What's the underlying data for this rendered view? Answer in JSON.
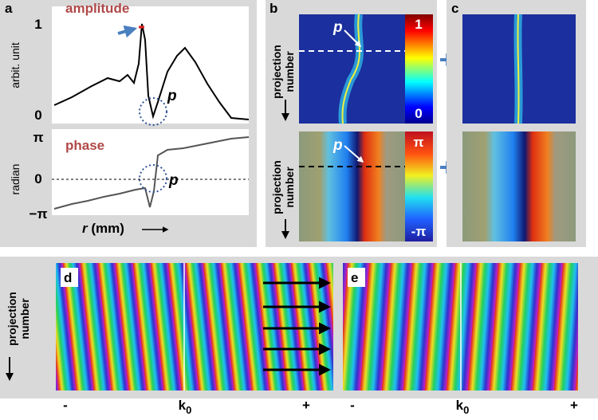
{
  "panel_a": {
    "label": "a",
    "amplitude": {
      "title": "amplitude",
      "y_label": "arbit. unit",
      "tick_top": "1",
      "tick_bottom": "0",
      "marker": "p"
    },
    "phase": {
      "title": "phase",
      "y_label": "radian",
      "tick_top": "π",
      "tick_middle": "0",
      "tick_bottom": "−π",
      "marker": "p"
    },
    "x_label_symbol": "r",
    "x_label_unit": "(mm)"
  },
  "panel_b": {
    "label": "b",
    "y_label": [
      "projection",
      "number"
    ],
    "top_marker": "p",
    "bottom_marker": "p",
    "top_colorbar": {
      "max": "1",
      "min": "0"
    },
    "bottom_colorbar": {
      "max": "π",
      "min": "-π"
    }
  },
  "panel_c": {
    "label": "c"
  },
  "panel_d": {
    "label": "d",
    "y_label": [
      "projection",
      "number"
    ]
  },
  "panel_e": {
    "label": "e"
  },
  "bottom_axis": {
    "d": {
      "left": "-",
      "center": "k",
      "center_sub": "0",
      "right": "+"
    },
    "e": {
      "left": "-",
      "center": "k",
      "center_sub": "0",
      "right": "+"
    }
  }
}
